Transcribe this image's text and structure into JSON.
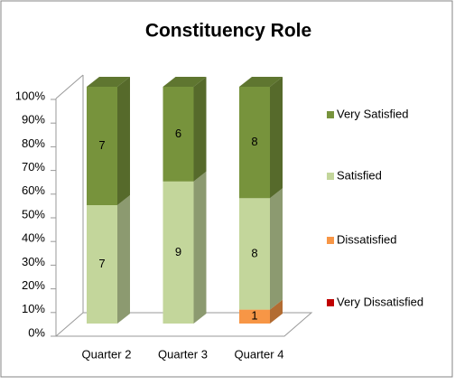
{
  "chart_data": {
    "type": "bar",
    "stacking": "percent",
    "title": "Constituency Role",
    "categories": [
      "Quarter 2",
      "Quarter 3",
      "Quarter 4"
    ],
    "series": [
      {
        "name": "Very Dissatisfied",
        "color": "#c00000",
        "values": [
          0,
          0,
          0
        ]
      },
      {
        "name": "Dissatisfied",
        "color": "#f79646",
        "values": [
          0,
          0,
          1
        ]
      },
      {
        "name": "Satisfied",
        "color": "#c3d69b",
        "values": [
          7,
          9,
          8
        ]
      },
      {
        "name": "Very Satisfied",
        "color": "#77933c",
        "values": [
          7,
          6,
          8
        ]
      }
    ],
    "ylim": [
      0,
      100
    ],
    "yticks": [
      {
        "value": 0,
        "label": "0%"
      },
      {
        "value": 10,
        "label": "10%"
      },
      {
        "value": 20,
        "label": "20%"
      },
      {
        "value": 30,
        "label": "30%"
      },
      {
        "value": 40,
        "label": "40%"
      },
      {
        "value": 50,
        "label": "50%"
      },
      {
        "value": 60,
        "label": "60%"
      },
      {
        "value": 70,
        "label": "70%"
      },
      {
        "value": 80,
        "label": "80%"
      },
      {
        "value": 90,
        "label": "90%"
      },
      {
        "value": 100,
        "label": "100%"
      }
    ],
    "legend": "right"
  }
}
